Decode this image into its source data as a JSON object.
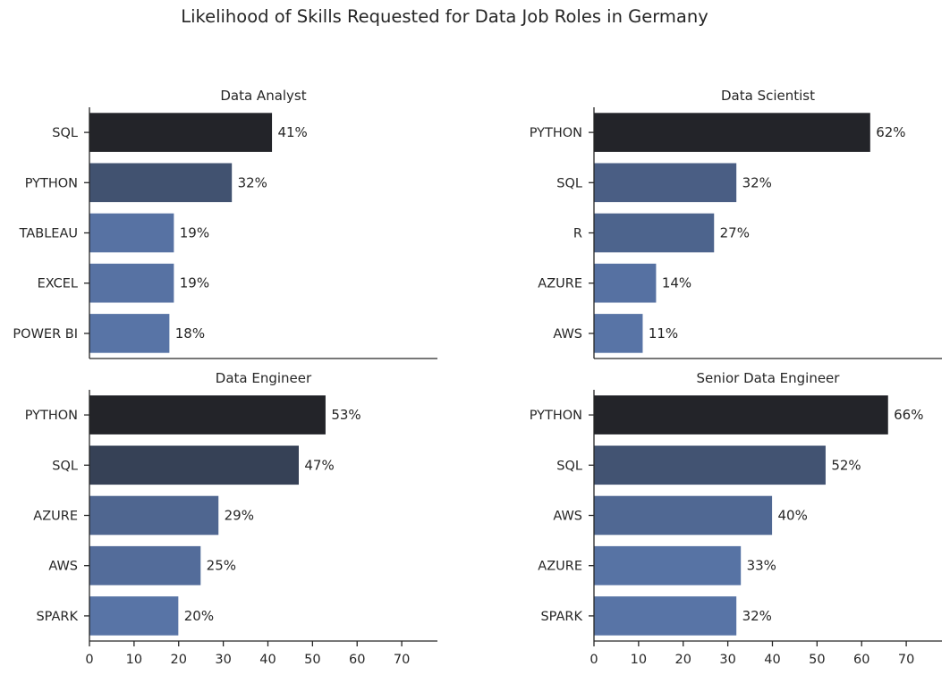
{
  "chart_data": {
    "type": "bar",
    "orientation": "horizontal",
    "suptitle": "Likelihood of Skills Requested for Data Job Roles in Germany",
    "xlim": [
      0,
      78
    ],
    "xticks": [
      0,
      10,
      20,
      30,
      40,
      50,
      60,
      70
    ],
    "value_suffix": "%",
    "grid": false,
    "colors": {
      "darkest": "#232429",
      "lightest": "#5874a6"
    },
    "panels": [
      {
        "title": "Data Analyst",
        "categories": [
          "SQL",
          "PYTHON",
          "TABLEAU",
          "EXCEL",
          "POWER BI"
        ],
        "values": [
          41,
          32,
          19,
          19,
          18
        ]
      },
      {
        "title": "Data Scientist",
        "categories": [
          "PYTHON",
          "SQL",
          "R",
          "AZURE",
          "AWS"
        ],
        "values": [
          62,
          32,
          27,
          14,
          11
        ]
      },
      {
        "title": "Data Engineer",
        "categories": [
          "PYTHON",
          "SQL",
          "AZURE",
          "AWS",
          "SPARK"
        ],
        "values": [
          53,
          47,
          29,
          25,
          20
        ]
      },
      {
        "title": "Senior Data Engineer",
        "categories": [
          "PYTHON",
          "SQL",
          "AWS",
          "AZURE",
          "SPARK"
        ],
        "values": [
          66,
          52,
          40,
          33,
          32
        ]
      }
    ]
  }
}
